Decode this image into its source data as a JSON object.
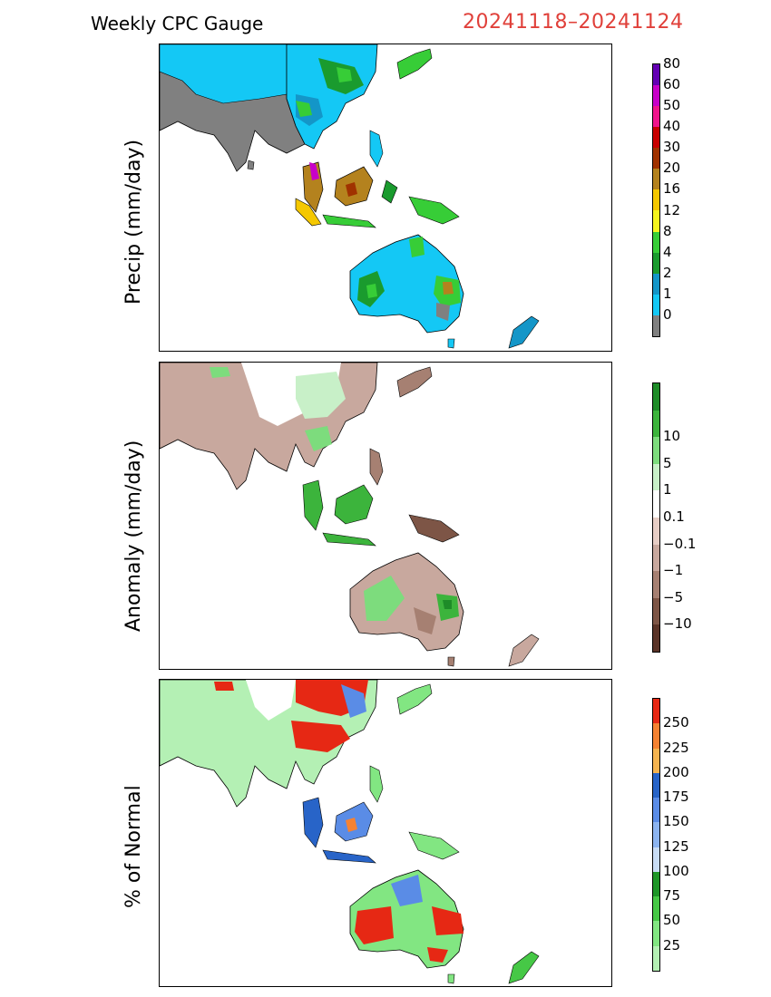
{
  "header": {
    "title": "Weekly CPC Gauge",
    "date_range": "20241118–20241124",
    "date_color": "#e0403a"
  },
  "panels": [
    {
      "id": "precip",
      "ylabel": "Precip (mm/day)",
      "colorbar": {
        "colors": [
          "#808080",
          "#14c8f5",
          "#1496c8",
          "#1a9b2e",
          "#37cd37",
          "#f5f51e",
          "#f5c800",
          "#b4821e",
          "#a03200",
          "#c80000",
          "#f0148c",
          "#c800c8",
          "#6400b4"
        ],
        "labels": [
          "0",
          "1",
          "2",
          "4",
          "8",
          "12",
          "16",
          "20",
          "30",
          "40",
          "50",
          "60",
          "80"
        ]
      }
    },
    {
      "id": "anomaly",
      "ylabel": "Anomaly (mm/day)",
      "colorbar": {
        "colors": [
          "#5a3428",
          "#7d5546",
          "#a68072",
          "#c8a89e",
          "#e6cdc5",
          "#ffffff",
          "#c8f0c8",
          "#7ddc7d",
          "#3cb43c",
          "#1e8c28"
        ],
        "labels": [
          "−10",
          "−5",
          "−1",
          "−0.1",
          "0.1",
          "1",
          "5",
          "10"
        ]
      }
    },
    {
      "id": "percent",
      "ylabel": "% of Normal",
      "colorbar": {
        "colors": [
          "#b4f0b4",
          "#82e682",
          "#46c846",
          "#1e9628",
          "#c8dcf5",
          "#8cb4f0",
          "#5a8ce6",
          "#2864c8",
          "#f5b450",
          "#f58232",
          "#e62814"
        ],
        "labels": [
          "25",
          "50",
          "75",
          "100",
          "125",
          "150",
          "175",
          "200",
          "225",
          "250"
        ]
      }
    }
  ]
}
